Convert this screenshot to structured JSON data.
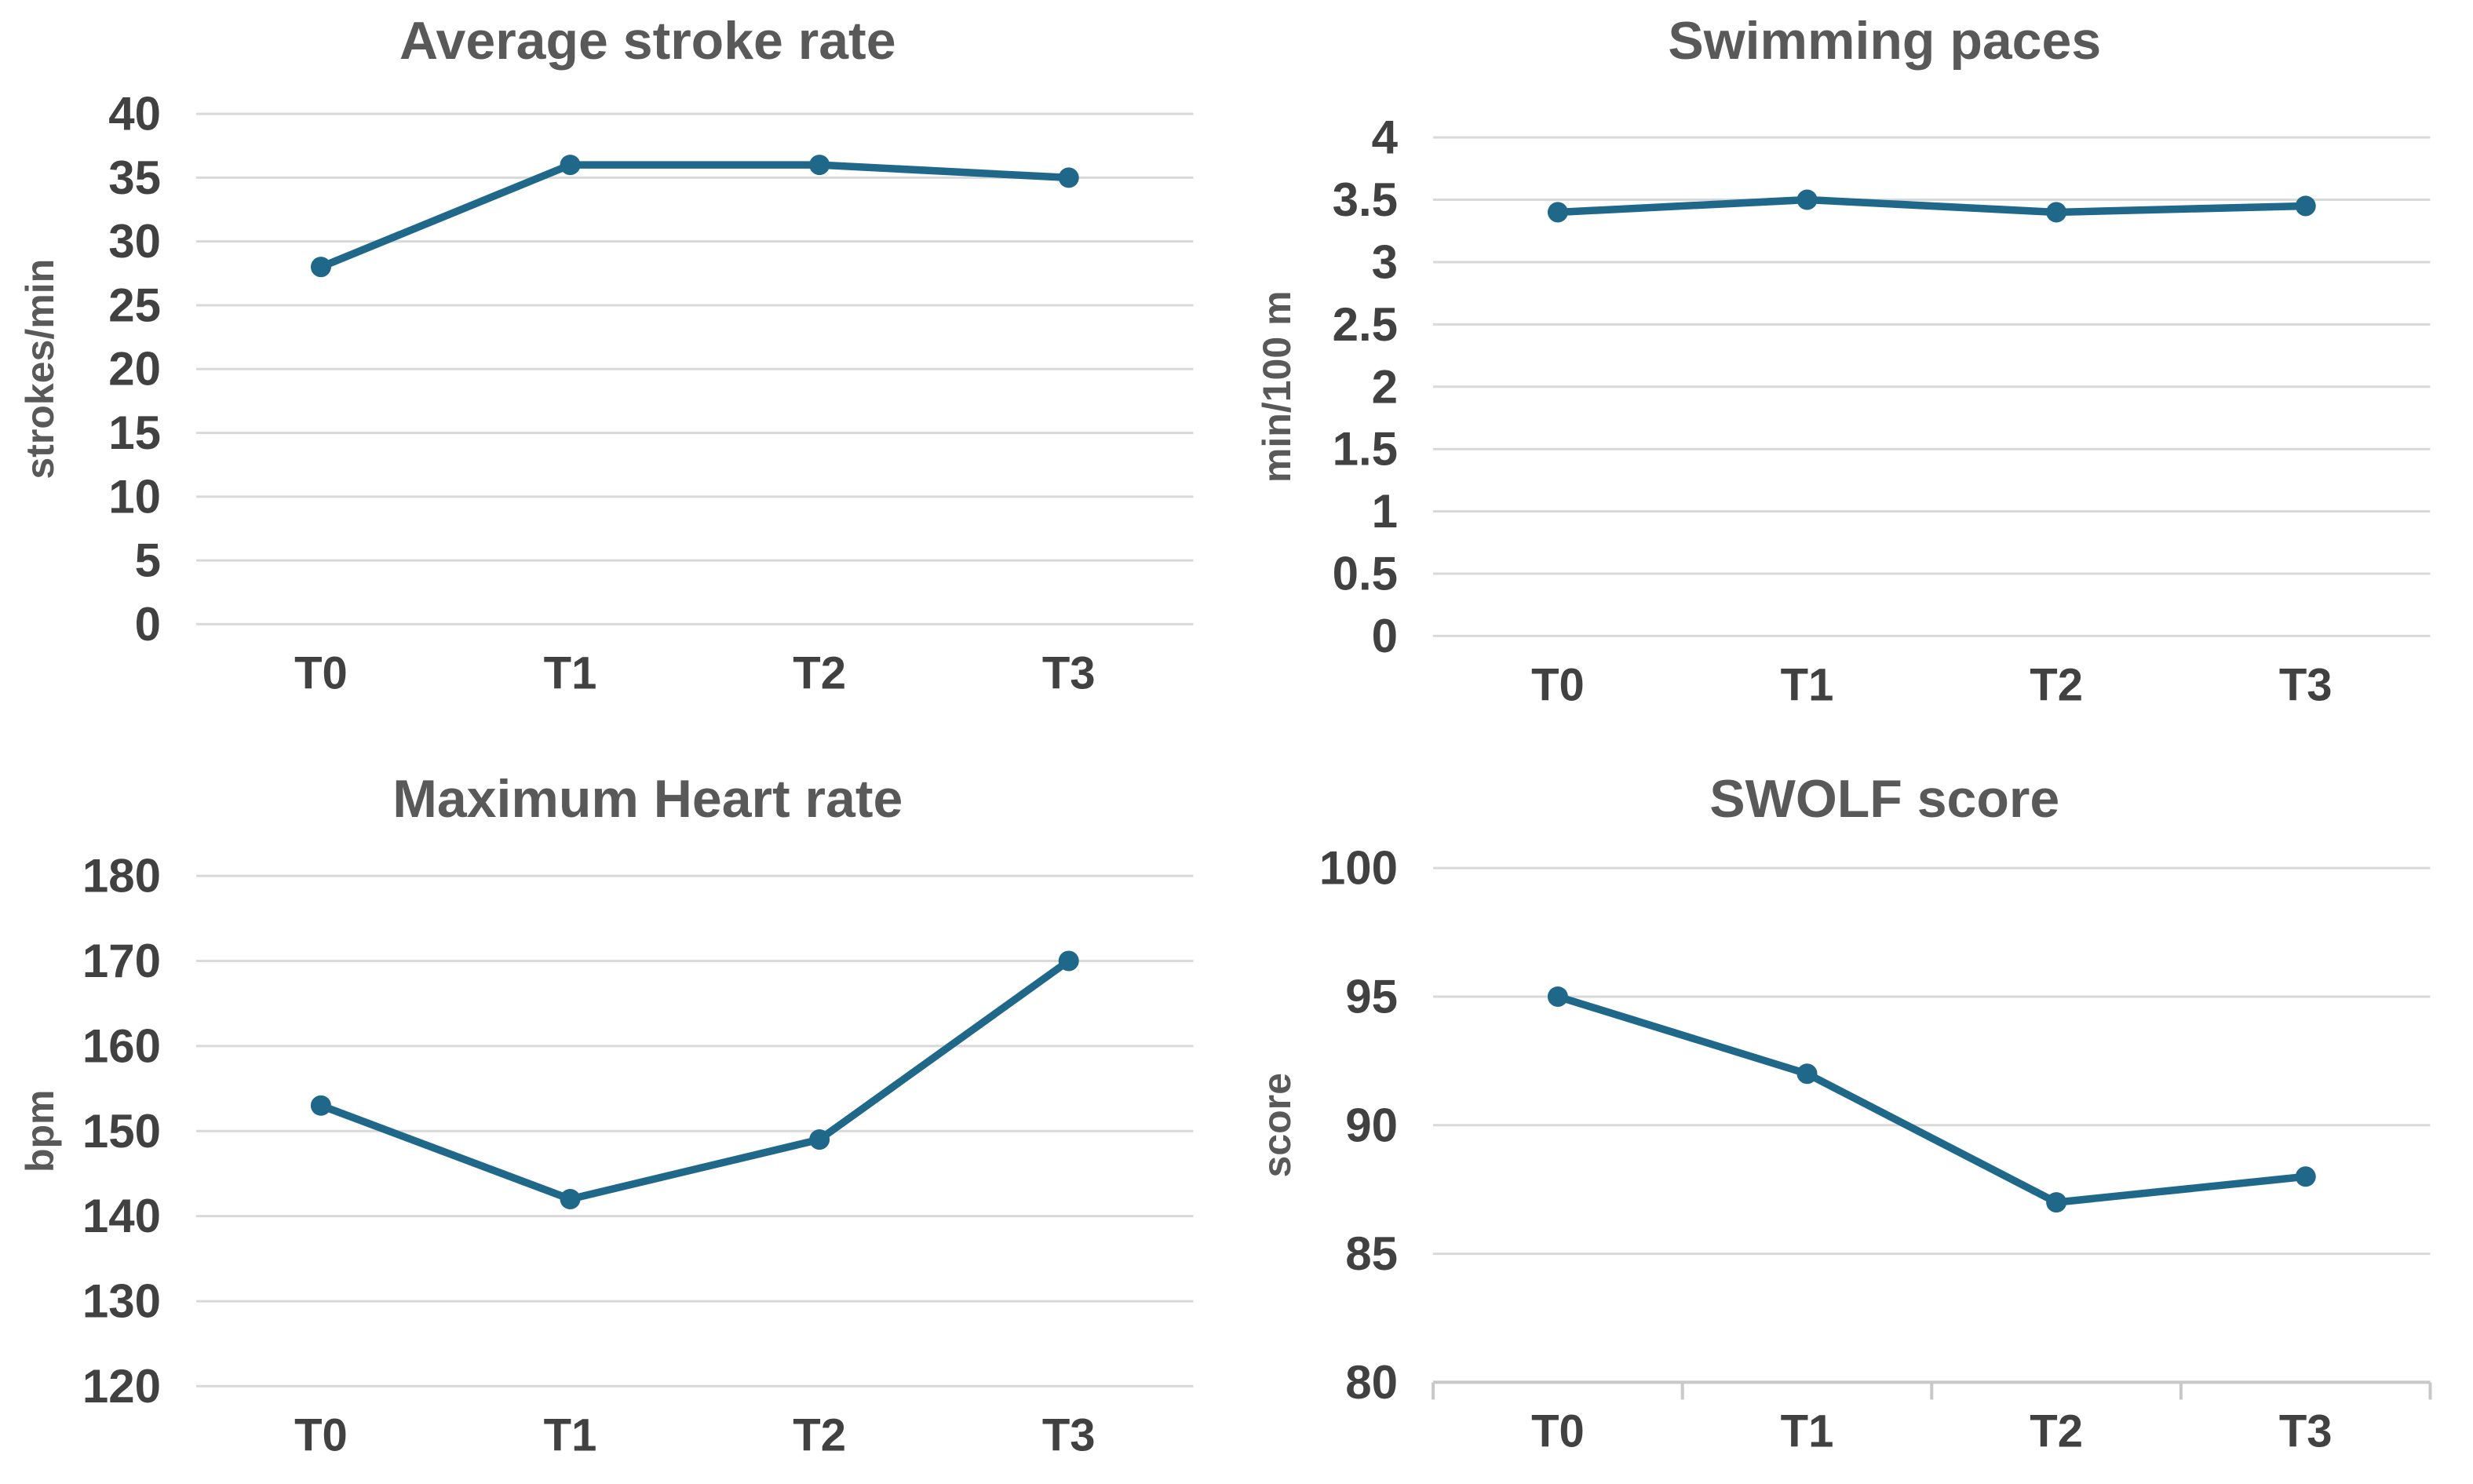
{
  "page": {
    "background": "#ffffff"
  },
  "colors": {
    "line": "#20688a",
    "marker": "#20688a",
    "grid": "#d9d9d9",
    "axis_line": "#c8c8c8",
    "title_text": "#595959",
    "tick_text": "#414141",
    "axis_label_text": "#595959"
  },
  "chart_data": [
    {
      "type": "line",
      "title": "Average stroke rate",
      "xlabel": "",
      "ylabel": "strokes/min",
      "categories": [
        "T0",
        "T1",
        "T2",
        "T3"
      ],
      "values": [
        28,
        36,
        36,
        35
      ],
      "y_ticks": [
        0,
        5,
        10,
        15,
        20,
        25,
        30,
        35,
        40
      ],
      "y_tick_labels": [
        "0",
        "5",
        "10",
        "15",
        "20",
        "25",
        "30",
        "35",
        "40"
      ],
      "ylim": [
        0,
        40
      ],
      "grid": true,
      "legend": "none",
      "x_axis_line": false
    },
    {
      "type": "line",
      "title": "Swimming paces",
      "xlabel": "",
      "ylabel": "min/100 m",
      "categories": [
        "T0",
        "T1",
        "T2",
        "T3"
      ],
      "values": [
        3.4,
        3.5,
        3.4,
        3.45
      ],
      "y_ticks": [
        0,
        0.5,
        1,
        1.5,
        2,
        2.5,
        3,
        3.5,
        4
      ],
      "y_tick_labels": [
        "0",
        "0.5",
        "1",
        "1.5",
        "2",
        "2.5",
        "3",
        "3.5",
        "4"
      ],
      "ylim": [
        0,
        4
      ],
      "grid": true,
      "legend": "none",
      "x_axis_line": false
    },
    {
      "type": "line",
      "title": "Maximum Heart rate",
      "xlabel": "",
      "ylabel": "bpm",
      "categories": [
        "T0",
        "T1",
        "T2",
        "T3"
      ],
      "values": [
        153,
        142,
        149,
        170
      ],
      "y_ticks": [
        120,
        130,
        140,
        150,
        160,
        170,
        180
      ],
      "y_tick_labels": [
        "120",
        "130",
        "140",
        "150",
        "160",
        "170",
        "180"
      ],
      "ylim": [
        120,
        180
      ],
      "grid": true,
      "legend": "none",
      "x_axis_line": false
    },
    {
      "type": "line",
      "title": "SWOLF score",
      "xlabel": "",
      "ylabel": "score",
      "categories": [
        "T0",
        "T1",
        "T2",
        "T3"
      ],
      "values": [
        95,
        92,
        87,
        88
      ],
      "y_ticks": [
        80,
        85,
        90,
        95,
        100
      ],
      "y_tick_labels": [
        "80",
        "85",
        "90",
        "95",
        "100"
      ],
      "ylim": [
        80,
        100
      ],
      "grid": true,
      "legend": "none",
      "x_axis_line": true
    }
  ]
}
